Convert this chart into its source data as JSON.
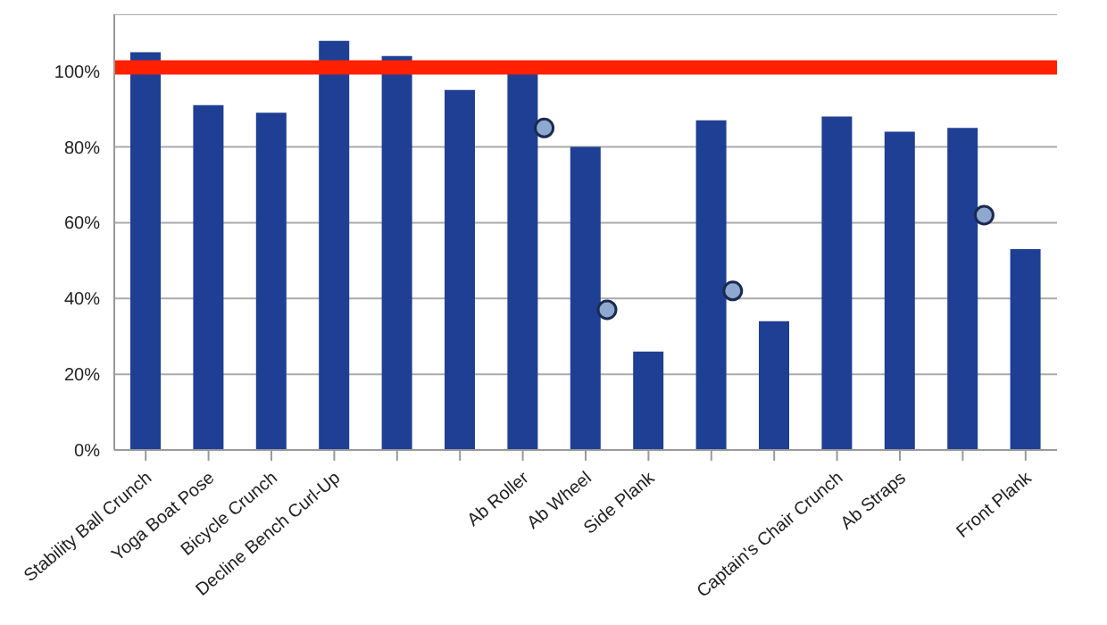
{
  "chart_data": {
    "type": "bar",
    "categories": [
      "Stability Ball Crunch",
      "Yoga Boat Pose",
      "Bicycle Crunch",
      "Decline Bench Curl-Up",
      null,
      null,
      "Ab Roller",
      "Ab Wheel",
      "Side Plank",
      null,
      null,
      "Captain's Chair Crunch",
      "Ab Straps",
      null,
      "Front Plank"
    ],
    "series": [
      {
        "color": "#1f3f94",
        "values": [
          105,
          91,
          89,
          108,
          104,
          95,
          100,
          80,
          26,
          87,
          34,
          88,
          84,
          85,
          53
        ]
      },
      {
        "type": "scatter",
        "color": "#8fa8d0",
        "marker": "circle",
        "values": [
          null,
          null,
          null,
          null,
          null,
          null,
          85,
          37,
          null,
          42,
          null,
          null,
          null,
          62,
          null
        ]
      }
    ],
    "ylim": [
      0,
      115
    ],
    "yticks": [
      {
        "value": 0,
        "label": "0%"
      },
      {
        "value": 20,
        "label": "20%"
      },
      {
        "value": 40,
        "label": "40%"
      },
      {
        "value": 60,
        "label": "60%"
      },
      {
        "value": 80,
        "label": "80%"
      },
      {
        "value": 100,
        "label": "100%"
      }
    ],
    "grid": "y",
    "ref_lines": [
      {
        "axis": "y",
        "value": 101,
        "color": "#ff2000"
      }
    ]
  }
}
